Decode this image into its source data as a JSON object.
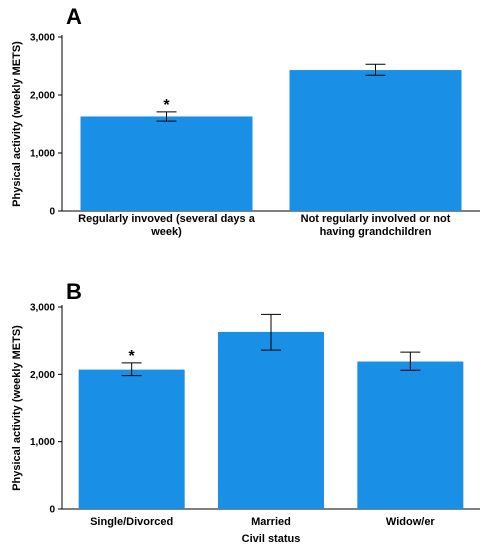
{
  "chart_data": [
    {
      "panel_label": "A",
      "type": "bar",
      "ylabel": "Physical activity (weekly METS)",
      "xlabel": "",
      "ylim": [
        0,
        3000
      ],
      "yticks": [
        0,
        1000,
        2000,
        3000
      ],
      "ytick_labels": [
        "0",
        "1,000",
        "2,000",
        "3,000"
      ],
      "grid": false,
      "bar_color": "#1a8fe6",
      "categories": [
        [
          "Regularly invoved (several days a",
          "week)"
        ],
        [
          "Not regularly involved or not",
          "having grandchildren"
        ]
      ],
      "values": [
        1630,
        2430
      ],
      "error_low": [
        1550,
        2340
      ],
      "error_high": [
        1710,
        2530
      ],
      "annotations": [
        "*",
        ""
      ]
    },
    {
      "panel_label": "B",
      "type": "bar",
      "ylabel": "Physical activity (weekly METS)",
      "xlabel": "Civil status",
      "ylim": [
        0,
        3000
      ],
      "yticks": [
        0,
        1000,
        2000,
        3000
      ],
      "ytick_labels": [
        "0",
        "1,000",
        "2,000",
        "3,000"
      ],
      "grid": false,
      "bar_color": "#1a8fe6",
      "categories": [
        [
          "Single/Divorced"
        ],
        [
          "Married"
        ],
        [
          "Widow/er"
        ]
      ],
      "values": [
        2070,
        2630,
        2190
      ],
      "error_low": [
        1980,
        2360,
        2060
      ],
      "error_high": [
        2170,
        2890,
        2330
      ],
      "annotations": [
        "*",
        "",
        ""
      ]
    }
  ]
}
